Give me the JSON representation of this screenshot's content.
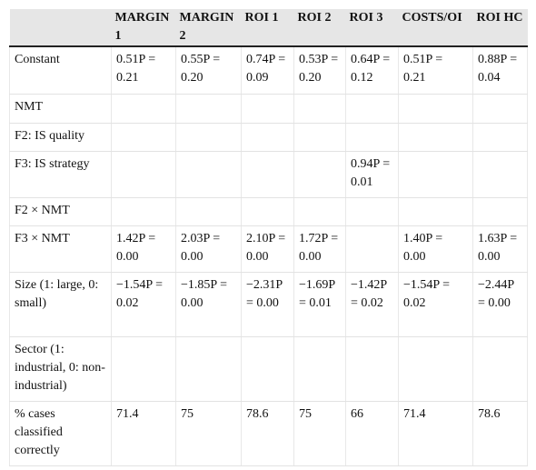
{
  "table": {
    "header": [
      "",
      "MARGIN 1",
      "MARGIN 2",
      "ROI 1",
      "ROI 2",
      "ROI 3",
      "COSTS/OI",
      "ROI HC"
    ],
    "rows": [
      [
        "Constant",
        "0.51P = 0.21",
        "0.55P = 0.20",
        "0.74P = 0.09",
        "0.53P = 0.20",
        "0.64P = 0.12",
        "0.51P = 0.21",
        "0.88P = 0.04"
      ],
      [
        "NMT",
        null,
        null,
        null,
        null,
        null,
        null,
        null
      ],
      [
        "F2: IS quality",
        null,
        null,
        null,
        null,
        null,
        null,
        null
      ],
      [
        "F3: IS strategy",
        null,
        null,
        null,
        null,
        "0.94P = 0.01",
        null,
        null
      ],
      [
        "F2 × NMT",
        null,
        null,
        null,
        null,
        null,
        null,
        null
      ],
      [
        "F3 × NMT",
        "1.42P = 0.00",
        "2.03P = 0.00",
        "2.10P = 0.00",
        "1.72P = 0.00",
        null,
        "1.40P = 0.00",
        "1.63P = 0.00"
      ],
      [
        "Size (1: large, 0: small)",
        "−1.54P = 0.02",
        "−1.85P = 0.00",
        "−2.31P = 0.00",
        "−1.69P = 0.01",
        "−1.42P = 0.02",
        "−1.54P = 0.02",
        "−2.44P = 0.00"
      ],
      [
        "Sector (1: industrial, 0: non-industrial)",
        null,
        null,
        null,
        null,
        null,
        null,
        null
      ],
      [
        "% cases classified correctly",
        71.4,
        75,
        78.6,
        75,
        66,
        71.4,
        78.6
      ]
    ]
  }
}
